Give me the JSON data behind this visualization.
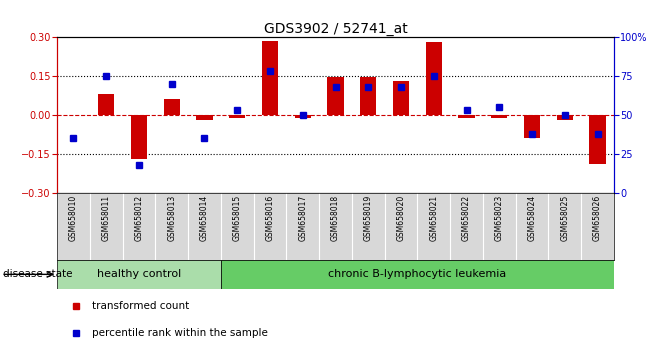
{
  "title": "GDS3902 / 52741_at",
  "samples": [
    "GSM658010",
    "GSM658011",
    "GSM658012",
    "GSM658013",
    "GSM658014",
    "GSM658015",
    "GSM658016",
    "GSM658017",
    "GSM658018",
    "GSM658019",
    "GSM658020",
    "GSM658021",
    "GSM658022",
    "GSM658023",
    "GSM658024",
    "GSM658025",
    "GSM658026"
  ],
  "red_values": [
    0.0,
    0.08,
    -0.17,
    0.06,
    -0.02,
    -0.01,
    0.285,
    -0.01,
    0.145,
    0.145,
    0.13,
    0.28,
    -0.01,
    -0.01,
    -0.09,
    -0.02,
    -0.19
  ],
  "blue_pct": [
    35,
    75,
    18,
    70,
    35,
    53,
    78,
    50,
    68,
    68,
    68,
    75,
    53,
    55,
    38,
    50,
    38
  ],
  "ylim": [
    -0.3,
    0.3
  ],
  "right_ylim": [
    0,
    100
  ],
  "yticks_left": [
    -0.3,
    -0.15,
    0.0,
    0.15,
    0.3
  ],
  "yticks_right": [
    0,
    25,
    50,
    75,
    100
  ],
  "healthy_count": 5,
  "disease_count": 12,
  "healthy_label": "healthy control",
  "disease_label": "chronic B-lymphocytic leukemia",
  "disease_state_label": "disease state",
  "legend_red": "transformed count",
  "legend_blue": "percentile rank within the sample",
  "bar_color": "#cc0000",
  "blue_color": "#0000cc",
  "zero_line_color": "#cc0000",
  "healthy_bg": "#aaddaa",
  "disease_bg": "#66cc66",
  "plot_bg": "#ffffff",
  "bar_width": 0.5,
  "blue_marker_size": 4
}
